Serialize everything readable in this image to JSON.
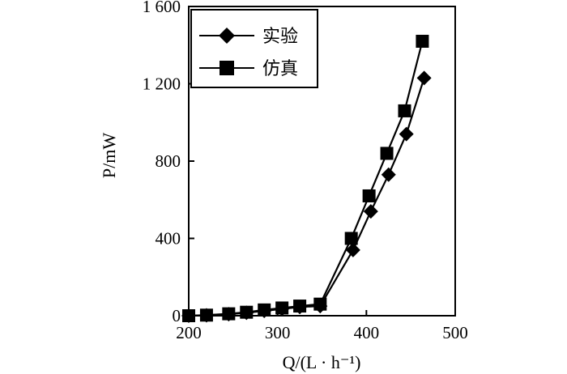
{
  "chart_data": {
    "type": "line",
    "title": "",
    "xlabel": "Q/(L · h⁻¹)",
    "ylabel": "P/mW",
    "xlim": [
      200,
      500
    ],
    "ylim": [
      0,
      1600
    ],
    "xticks": [
      200,
      300,
      400,
      500
    ],
    "yticks": [
      0,
      400,
      800,
      1200,
      1600
    ],
    "xtick_labels": [
      "200",
      "300",
      "400",
      "500"
    ],
    "ytick_labels": [
      "0",
      "400",
      "800",
      "1 200",
      "1 600"
    ],
    "grid": false,
    "legend_position": "top-left",
    "series": [
      {
        "name": "实验",
        "marker": "diamond",
        "color": "#000000",
        "x": [
          200,
          220,
          245,
          265,
          285,
          305,
          325,
          348,
          385,
          405,
          425,
          445,
          465
        ],
        "y": [
          0,
          2,
          8,
          15,
          25,
          35,
          45,
          50,
          340,
          540,
          730,
          940,
          1230
        ]
      },
      {
        "name": "仿真",
        "marker": "square",
        "color": "#000000",
        "x": [
          200,
          220,
          245,
          265,
          285,
          305,
          325,
          348,
          383,
          403,
          423,
          443,
          463
        ],
        "y": [
          0,
          3,
          10,
          18,
          30,
          40,
          50,
          60,
          400,
          620,
          840,
          1060,
          1420
        ]
      }
    ]
  }
}
